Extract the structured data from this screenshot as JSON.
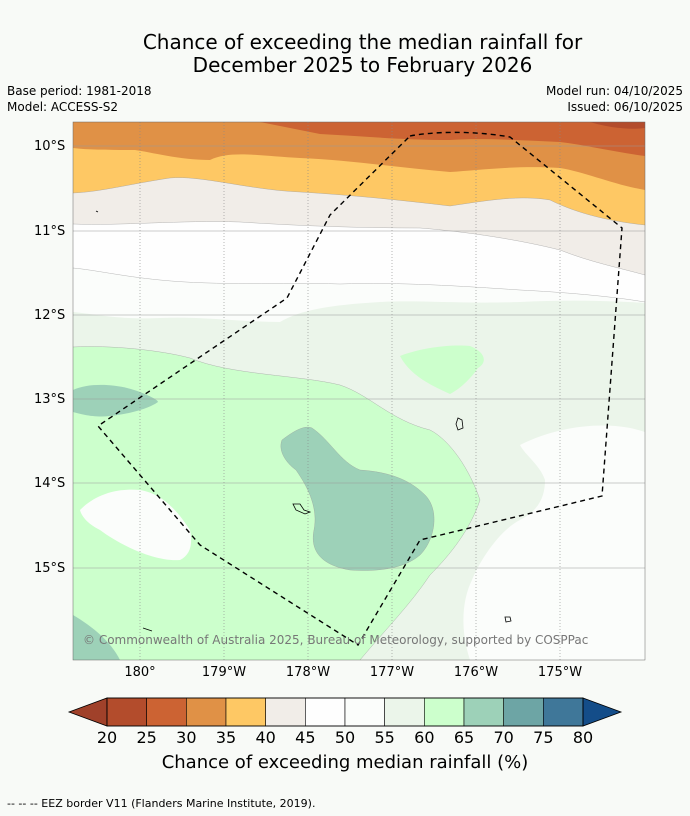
{
  "title": {
    "line1": "Chance of exceeding the median rainfall for",
    "line2": "December 2025 to February 2026"
  },
  "meta": {
    "base_period": "Base period: 1981-2018",
    "model": "Model: ACCESS-S2",
    "model_run": "Model run: 04/10/2025",
    "issued": "Issued: 06/10/2025"
  },
  "map": {
    "lat_labels": [
      "10°S",
      "11°S",
      "12°S",
      "13°S",
      "14°S",
      "15°S"
    ],
    "lon_labels": [
      "180°",
      "179°W",
      "178°W",
      "177°W",
      "176°W",
      "175°W"
    ],
    "copyright": "© Commonwealth of Australia 2025, Bureau of Meteorology, supported by COSPPac"
  },
  "colorbar": {
    "ticks": [
      "20",
      "25",
      "30",
      "35",
      "40",
      "45",
      "50",
      "55",
      "60",
      "65",
      "70",
      "75",
      "80"
    ],
    "colors": [
      "#a0412a",
      "#b34c2c",
      "#cc6333",
      "#e09146",
      "#fec864",
      "#f1ede8",
      "#fefefe",
      "#fbfdfb",
      "#ebf5ea",
      "#ccffcc",
      "#9dd1b8",
      "#6da5a5",
      "#3f7799",
      "#144d89"
    ],
    "title": "Chance of exceeding median rainfall (%)"
  },
  "footer": "--  --  -- EEZ border V11 (Flanders Marine Institute, 2019)."
}
